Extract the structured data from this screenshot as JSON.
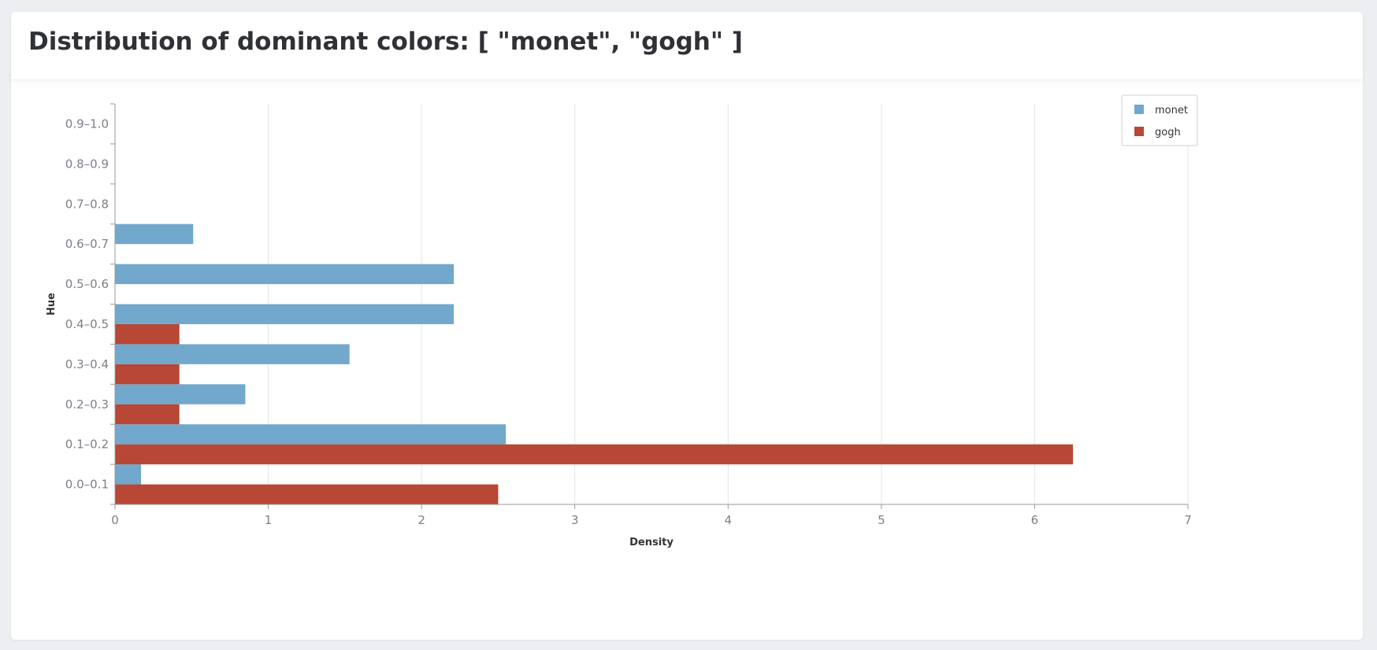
{
  "card": {
    "title": "Distribution of dominant colors: [ \"monet\", \"gogh\" ]"
  },
  "chart_data": {
    "type": "bar",
    "orientation": "horizontal",
    "title": "",
    "xlabel": "Density",
    "ylabel": "Hue",
    "xlim": [
      0,
      7
    ],
    "x_ticks": [
      0,
      1,
      2,
      3,
      4,
      5,
      6,
      7
    ],
    "grid": true,
    "legend_position": "top-right",
    "categories": [
      "0.0-0.1",
      "0.1-0.2",
      "0.2-0.3",
      "0.3-0.4",
      "0.4-0.5",
      "0.5-0.6",
      "0.6-0.7",
      "0.7-0.8",
      "0.8-0.9",
      "0.9-1.0"
    ],
    "series": [
      {
        "name": "monet",
        "color": "#72a8cc",
        "values": [
          0.17,
          2.55,
          0.85,
          1.53,
          2.21,
          2.21,
          0.51,
          0,
          0,
          0
        ]
      },
      {
        "name": "gogh",
        "color": "#b84735",
        "values": [
          2.5,
          6.25,
          0.42,
          0.42,
          0.42,
          0,
          0,
          0,
          0,
          0
        ]
      }
    ]
  }
}
